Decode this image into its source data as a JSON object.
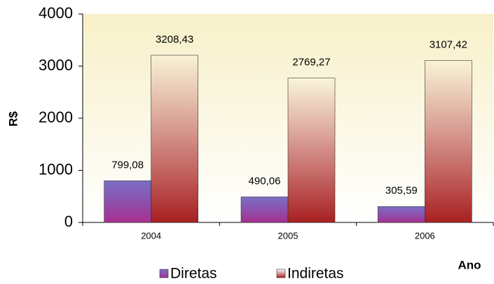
{
  "chart_data": {
    "type": "bar",
    "x_label": "Ano",
    "y_label": "R$",
    "categories": [
      "2004",
      "2005",
      "2006"
    ],
    "series": [
      {
        "name": "Diretas",
        "color": "#a8308f",
        "values": [
          799.08,
          490.06,
          305.59
        ],
        "value_labels": [
          "799,08",
          "490,06",
          "305,59"
        ]
      },
      {
        "name": "Indiretas",
        "color": "#a82020",
        "values": [
          3208.43,
          2769.27,
          3107.42
        ],
        "value_labels": [
          "3208,43",
          "2769,27",
          "3107,42"
        ]
      }
    ],
    "ylim": [
      0,
      4000
    ],
    "yticks": [
      0,
      1000,
      2000,
      3000,
      4000
    ],
    "grid": false,
    "legend": "bottom"
  }
}
